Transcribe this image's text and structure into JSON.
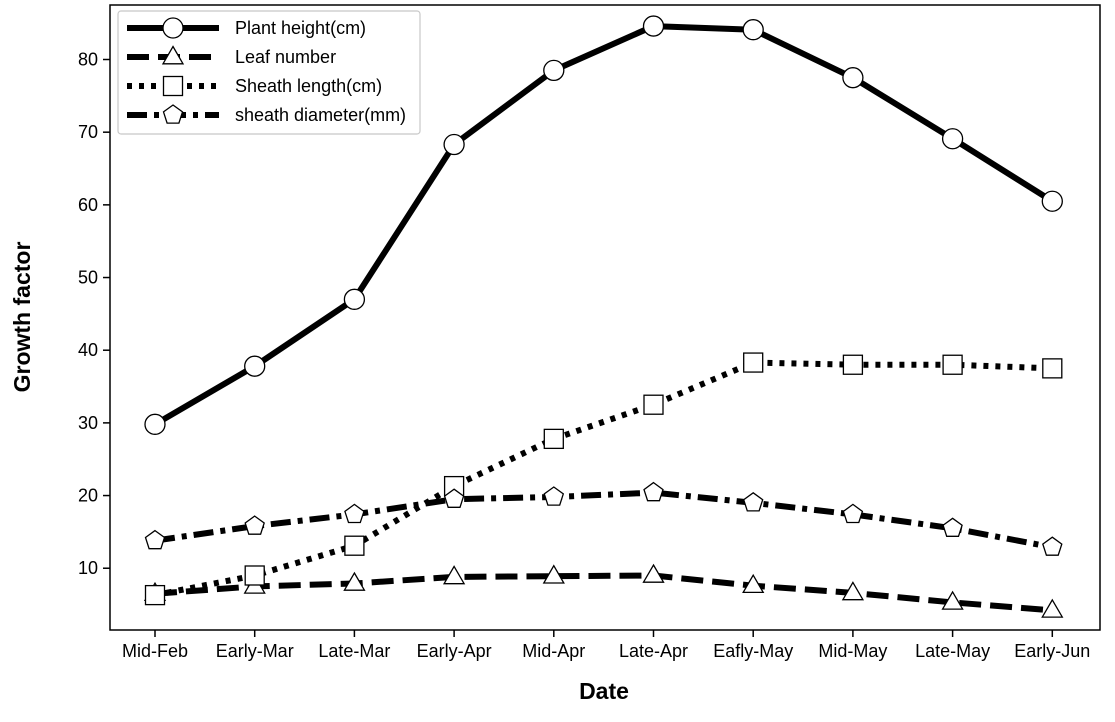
{
  "chart_data": {
    "type": "line",
    "title": "",
    "xlabel": "Date",
    "ylabel": "Growth factor",
    "categories": [
      "Mid-Feb",
      "Early-Mar",
      "Late-Mar",
      "Early-Apr",
      "Mid-Apr",
      "Late-Apr",
      "Eafly-May",
      "Mid-May",
      "Late-May",
      "Early-Jun"
    ],
    "yticks": [
      10,
      20,
      30,
      40,
      50,
      60,
      70,
      80
    ],
    "ylim": [
      1.5,
      87.5
    ],
    "grid": false,
    "legend_position": "top-left",
    "series": [
      {
        "name": "Plant height(cm)",
        "marker": "circle",
        "dash": "solid",
        "values": [
          29.8,
          37.8,
          47.0,
          68.3,
          78.5,
          84.6,
          84.1,
          77.5,
          69.1,
          60.5
        ]
      },
      {
        "name": "Leaf number",
        "marker": "triangle",
        "dash": "dashed",
        "values": [
          6.5,
          7.5,
          7.9,
          8.8,
          8.9,
          9.0,
          7.6,
          6.6,
          5.3,
          4.2
        ]
      },
      {
        "name": "Sheath length(cm)",
        "marker": "square",
        "dash": "dotted",
        "values": [
          6.3,
          9.0,
          13.1,
          21.3,
          27.8,
          32.5,
          38.3,
          38.0,
          38.0,
          37.5
        ]
      },
      {
        "name": "sheath diameter(mm)",
        "marker": "pentagon",
        "dash": "dashdot",
        "values": [
          13.8,
          15.8,
          17.4,
          19.5,
          19.8,
          20.4,
          19.0,
          17.4,
          15.5,
          12.9
        ]
      }
    ]
  }
}
